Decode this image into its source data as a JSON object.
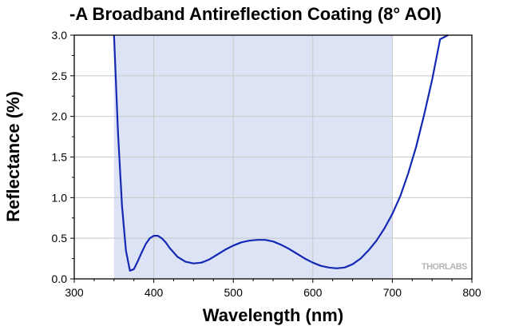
{
  "chart_data": {
    "type": "line",
    "title": "-A Broadband Antireflection Coating (8° AOI)",
    "xlabel": "Wavelength (nm)",
    "ylabel": "Reflectance (%)",
    "xlim": [
      300,
      800
    ],
    "ylim": [
      0,
      3.0
    ],
    "x_ticks": [
      "300",
      "400",
      "500",
      "600",
      "700",
      "800"
    ],
    "y_ticks": [
      "0.0",
      "0.5",
      "1.0",
      "1.5",
      "2.0",
      "2.5",
      "3.0"
    ],
    "grid": true,
    "shaded_band": [
      350,
      700
    ],
    "watermark": "THORLABS",
    "series": [
      {
        "color": "#1428b4",
        "x": [
          350,
          355,
          360,
          365,
          370,
          375,
          380,
          385,
          390,
          395,
          400,
          405,
          410,
          415,
          420,
          430,
          440,
          450,
          460,
          470,
          480,
          490,
          500,
          510,
          520,
          530,
          540,
          550,
          560,
          570,
          580,
          590,
          600,
          610,
          620,
          630,
          640,
          650,
          660,
          670,
          680,
          690,
          700,
          710,
          720,
          730,
          740,
          750,
          760,
          770
        ],
        "y": [
          3.0,
          1.8,
          0.9,
          0.35,
          0.1,
          0.12,
          0.22,
          0.33,
          0.43,
          0.5,
          0.53,
          0.53,
          0.5,
          0.45,
          0.38,
          0.27,
          0.21,
          0.19,
          0.2,
          0.24,
          0.3,
          0.36,
          0.41,
          0.45,
          0.47,
          0.48,
          0.48,
          0.46,
          0.42,
          0.37,
          0.31,
          0.25,
          0.2,
          0.16,
          0.14,
          0.13,
          0.14,
          0.18,
          0.25,
          0.35,
          0.47,
          0.62,
          0.8,
          1.02,
          1.3,
          1.63,
          2.02,
          2.45,
          2.95,
          3.0
        ]
      }
    ]
  }
}
